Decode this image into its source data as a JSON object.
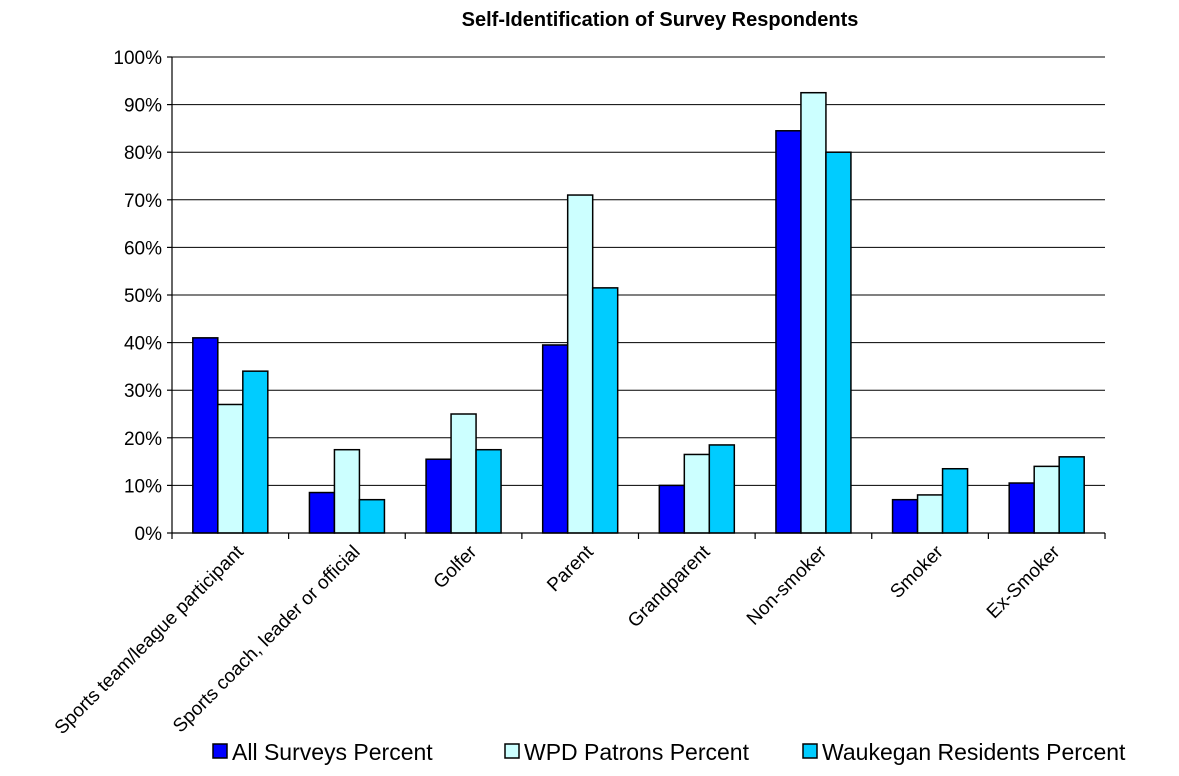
{
  "chart_data": {
    "type": "bar",
    "title": "Self-Identification of Survey Respondents",
    "xlabel": "",
    "ylabel": "",
    "ylim": [
      0,
      100
    ],
    "y_ticks": [
      "0%",
      "10%",
      "20%",
      "30%",
      "40%",
      "50%",
      "60%",
      "70%",
      "80%",
      "90%",
      "100%"
    ],
    "grid": true,
    "legend_position": "bottom",
    "categories": [
      "Sports team/league participant",
      "Sports coach, leader or official",
      "Golfer",
      "Parent",
      "Grandparent",
      "Non-smoker",
      "Smoker",
      "Ex-Smoker"
    ],
    "series": [
      {
        "name": "All Surveys Percent",
        "color": "#0000FF",
        "values": [
          41,
          8.5,
          15.5,
          39.5,
          10,
          84.5,
          7,
          10.5
        ]
      },
      {
        "name": "WPD Patrons Percent",
        "color": "#CCFFFF",
        "values": [
          27,
          17.5,
          25,
          71,
          16.5,
          92.5,
          8,
          14
        ]
      },
      {
        "name": "Waukegan Residents Percent",
        "color": "#00CCFF",
        "values": [
          34,
          7,
          17.5,
          51.5,
          18.5,
          80,
          13.5,
          16
        ]
      }
    ]
  }
}
